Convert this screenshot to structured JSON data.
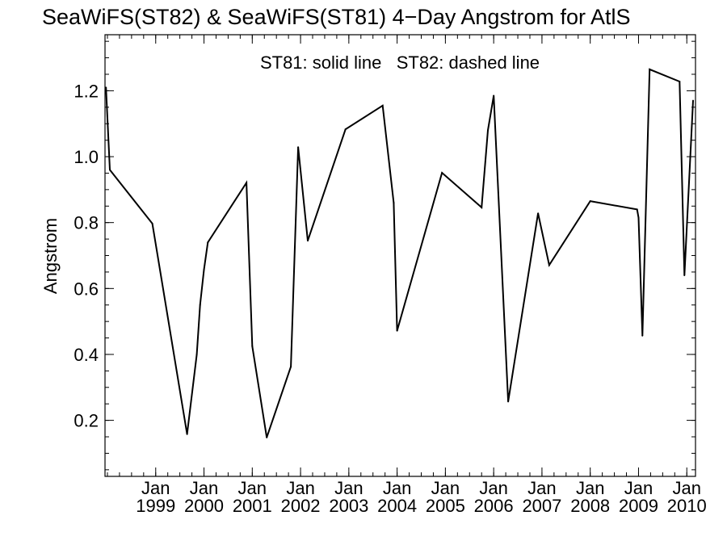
{
  "chart_data": {
    "type": "line",
    "title": "SeaWiFS(ST82) & SeaWiFS(ST81) 4−Day Angstrom for AtlS",
    "annotation": "ST81: solid line   ST82: dashed line",
    "ylabel": "Angstrom",
    "xlabel": "",
    "xlim": [
      1997.95,
      2010.18
    ],
    "ylim": [
      0.03,
      1.37
    ],
    "grid": false,
    "y_ticks": [
      0.2,
      0.4,
      0.6,
      0.8,
      1.0,
      1.2
    ],
    "y_tick_labels": [
      "0.2",
      "0.4",
      "0.6",
      "0.8",
      "1.0",
      "1.2"
    ],
    "x_ticks": [
      1999,
      2000,
      2001,
      2002,
      2003,
      2004,
      2005,
      2006,
      2007,
      2008,
      2009,
      2010
    ],
    "x_tick_labels": [
      {
        "month": "Jan",
        "year": "1999"
      },
      {
        "month": "Jan",
        "year": "2000"
      },
      {
        "month": "Jan",
        "year": "2001"
      },
      {
        "month": "Jan",
        "year": "2002"
      },
      {
        "month": "Jan",
        "year": "2003"
      },
      {
        "month": "Jan",
        "year": "2004"
      },
      {
        "month": "Jan",
        "year": "2005"
      },
      {
        "month": "Jan",
        "year": "2006"
      },
      {
        "month": "Jan",
        "year": "2007"
      },
      {
        "month": "Jan",
        "year": "2008"
      },
      {
        "month": "Jan",
        "year": "2009"
      },
      {
        "month": "Jan",
        "year": "2010"
      }
    ],
    "series": [
      {
        "style": "solid",
        "color": "#000000",
        "x": [
          1997.97,
          1998.05,
          1998.93,
          1999.65,
          1999.85,
          1999.92,
          2000.0,
          2000.08,
          2000.88,
          2001.0,
          2001.3,
          2001.8,
          2001.95,
          2002.15,
          2002.93,
          2003.7,
          2003.93,
          2004.0,
          2004.93,
          2005.75,
          2005.88,
          2006.0,
          2006.3,
          2006.92,
          2007.15,
          2008.0,
          2008.97,
          2009.0,
          2009.08,
          2009.23,
          2009.85,
          2009.95,
          2010.13
        ],
        "y": [
          1.21,
          0.96,
          0.797,
          0.158,
          0.4,
          0.55,
          0.657,
          0.74,
          0.921,
          0.425,
          0.148,
          0.363,
          1.029,
          0.745,
          1.083,
          1.155,
          0.86,
          0.472,
          0.951,
          0.846,
          1.08,
          1.185,
          0.257,
          0.828,
          0.671,
          0.865,
          0.84,
          0.815,
          0.457,
          1.265,
          1.228,
          0.64,
          1.17
        ]
      }
    ]
  }
}
